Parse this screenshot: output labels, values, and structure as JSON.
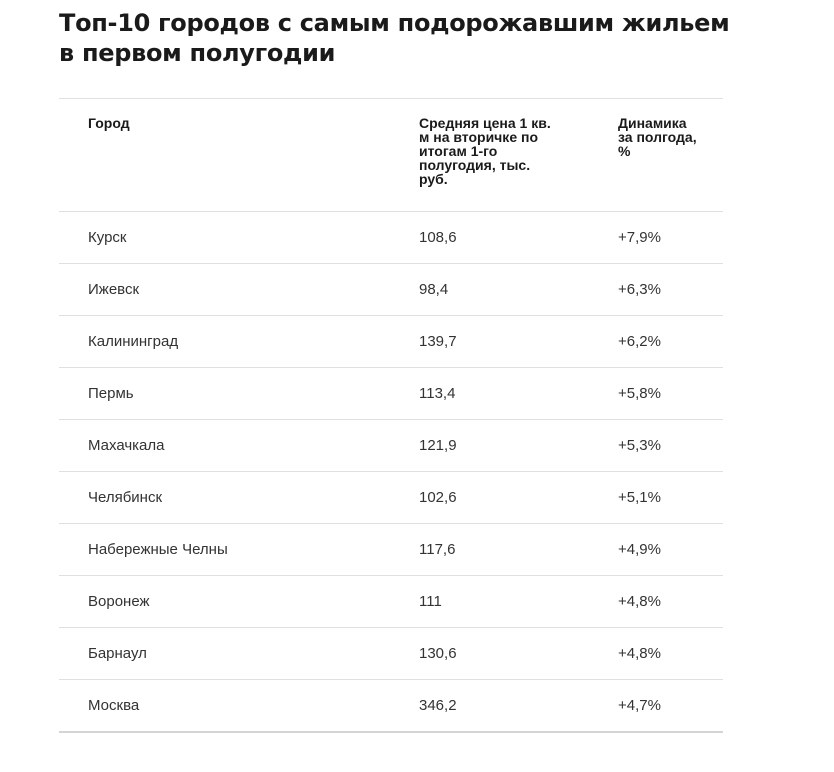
{
  "title": "Топ-10 городов с самым подорожавшим жильем в первом полугодии",
  "table": {
    "headers": {
      "city": "Город",
      "price": "Средняя цена 1 кв. м на вторичке по итогам 1-го полугодия, тыс. руб.",
      "change": "Динамика за полгода, %"
    },
    "rows": [
      {
        "city": "Курск",
        "price": "108,6",
        "change": "+7,9%"
      },
      {
        "city": "Ижевск",
        "price": "98,4",
        "change": "+6,3%"
      },
      {
        "city": "Калининград",
        "price": "139,7",
        "change": "+6,2%"
      },
      {
        "city": "Пермь",
        "price": "113,4",
        "change": "+5,8%"
      },
      {
        "city": "Махачкала",
        "price": "121,9",
        "change": "+5,3%"
      },
      {
        "city": "Челябинск",
        "price": "102,6",
        "change": "+5,1%"
      },
      {
        "city": "Набережные Челны",
        "price": "117,6",
        "change": "+4,9%"
      },
      {
        "city": "Воронеж",
        "price": "111",
        "change": "+4,8%"
      },
      {
        "city": "Барнаул",
        "price": "130,6",
        "change": "+4,8%"
      },
      {
        "city": "Москва",
        "price": "346,2",
        "change": "+4,7%"
      }
    ]
  }
}
